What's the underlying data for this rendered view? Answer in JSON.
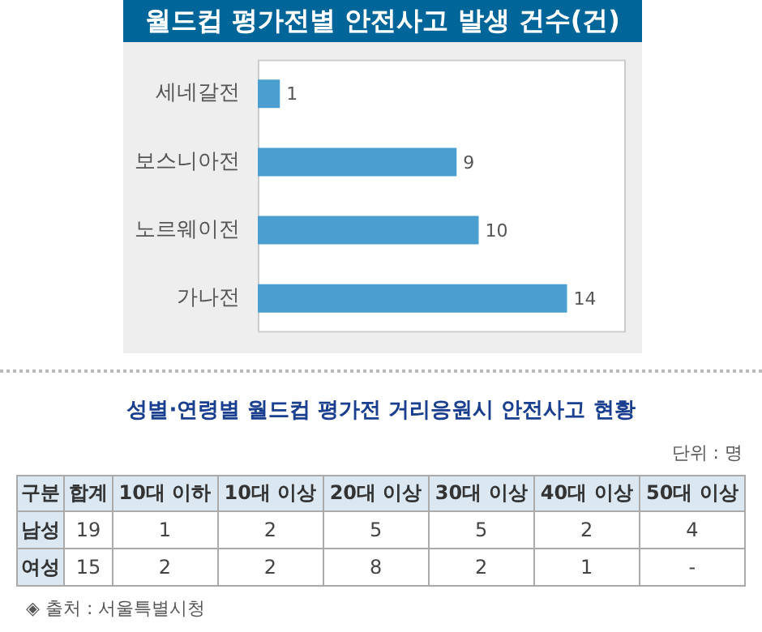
{
  "chart_data": [
    {
      "type": "bar",
      "orientation": "horizontal",
      "title": "월드컵 평가전별 안전사고 발생 건수(건)",
      "categories": [
        "세네갈전",
        "보스니아전",
        "노르웨이전",
        "가나전"
      ],
      "values": [
        1,
        9,
        10,
        14
      ],
      "color": "#4a9fd0",
      "data_labels": true,
      "grid": false,
      "legend": false,
      "tick_labels": "y"
    },
    {
      "type": "heatmap",
      "title": "성별·연령별 월드컵 평가전 거리응원시 안전사고 현황",
      "ylabel": "구분",
      "categories": [
        "합계",
        "10대 이하",
        "10대 이상",
        "20대 이상",
        "30대 이상",
        "40대 이상",
        "50대 이상"
      ],
      "y_categories": [
        "남성",
        "여성"
      ],
      "cells": [
        [
          19,
          1,
          2,
          5,
          5,
          2,
          4
        ],
        [
          15,
          2,
          2,
          8,
          2,
          1,
          null
        ]
      ],
      "data_labels": true,
      "cell_labels": [
        [
          "19",
          "1",
          "2",
          "5",
          "5",
          "2",
          "4"
        ],
        [
          "15",
          "2",
          "2",
          "8",
          "2",
          "1",
          "-"
        ]
      ],
      "annotations": [
        "단위 : 명",
        "◈ 출처 : 서울특별시청"
      ]
    }
  ]
}
